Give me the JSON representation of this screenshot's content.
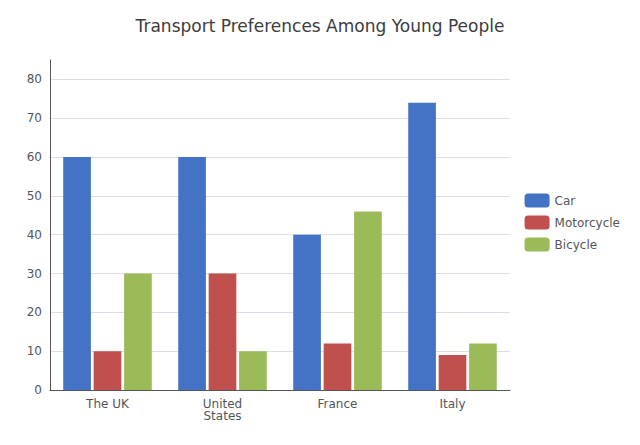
{
  "chart_data": {
    "type": "bar",
    "title": "Transport Preferences Among Young People",
    "categories": [
      "The UK",
      "United\nStates",
      "France",
      "Italy"
    ],
    "series": [
      {
        "name": "Car",
        "color": "#4472C4",
        "values": [
          60,
          60,
          40,
          74
        ]
      },
      {
        "name": "Motorcycle",
        "color": "#C0504D",
        "values": [
          10,
          30,
          12,
          9
        ]
      },
      {
        "name": "Bicycle",
        "color": "#9BBB59",
        "values": [
          30,
          10,
          46,
          12
        ]
      }
    ],
    "ylim": [
      0,
      85
    ],
    "yticks": [
      0,
      10,
      20,
      30,
      40,
      50,
      60,
      70,
      80
    ],
    "grid": true,
    "legend": "right"
  }
}
